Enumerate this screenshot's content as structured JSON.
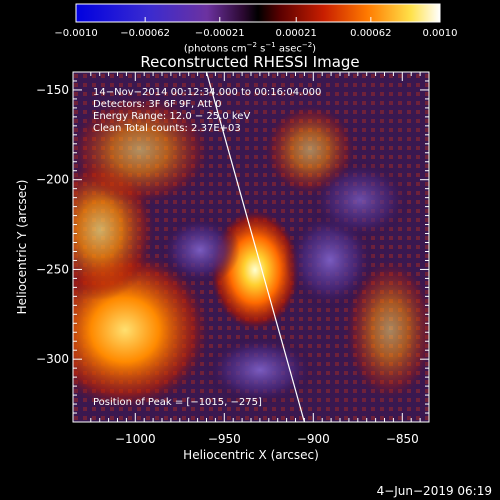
{
  "chart_data": {
    "type": "heatmap",
    "title": "Reconstructed RHESSI Image",
    "xlabel": "Heliocentric X (arcsec)",
    "ylabel": "Heliocentric Y (arcsec)",
    "xlim": [
      -1035,
      -835
    ],
    "ylim": [
      -335,
      -140
    ],
    "x_ticks": [
      {
        "value": -1000,
        "label": "−1000"
      },
      {
        "value": -950,
        "label": "−950"
      },
      {
        "value": -900,
        "label": "−900"
      },
      {
        "value": -850,
        "label": "−850"
      }
    ],
    "y_ticks": [
      {
        "value": -150,
        "label": "−150"
      },
      {
        "value": -200,
        "label": "−200"
      },
      {
        "value": -250,
        "label": "−250"
      },
      {
        "value": -300,
        "label": "−300"
      }
    ],
    "colorbar": {
      "range": [
        -0.001,
        0.001
      ],
      "tick_labels": [
        "−0.0010",
        "−0.00062",
        "−0.00021",
        "0.00021",
        "0.00062",
        "0.0010"
      ],
      "tick_values": [
        -0.001,
        -0.00062,
        -0.00021,
        0.00021,
        0.00062,
        0.001
      ],
      "label_text": "(photons cm",
      "label_exp1": "−2",
      "label_mid": " s",
      "label_exp2": "−1",
      "label_end": " asec",
      "label_exp3": "−2",
      "label_close": ")"
    },
    "annotations": {
      "time_range": "14−Nov−2014 00:12:34.000 to 00:16:04.000",
      "detectors": "Detectors: 3F 6F 9F, Att 0",
      "energy": "Energy Range: 12.0 − 25.0 keV",
      "clean": "Clean    Total counts: 2.37E+03",
      "peak": "Position of Peak = [−1015, −275]"
    },
    "limb_line": [
      [
        -960,
        -140
      ],
      [
        -905,
        -335
      ]
    ],
    "colors": {
      "background": "#000000",
      "axes": "#ffffff"
    }
  },
  "footer": {
    "date": "4−Jun−2019 06:19"
  }
}
